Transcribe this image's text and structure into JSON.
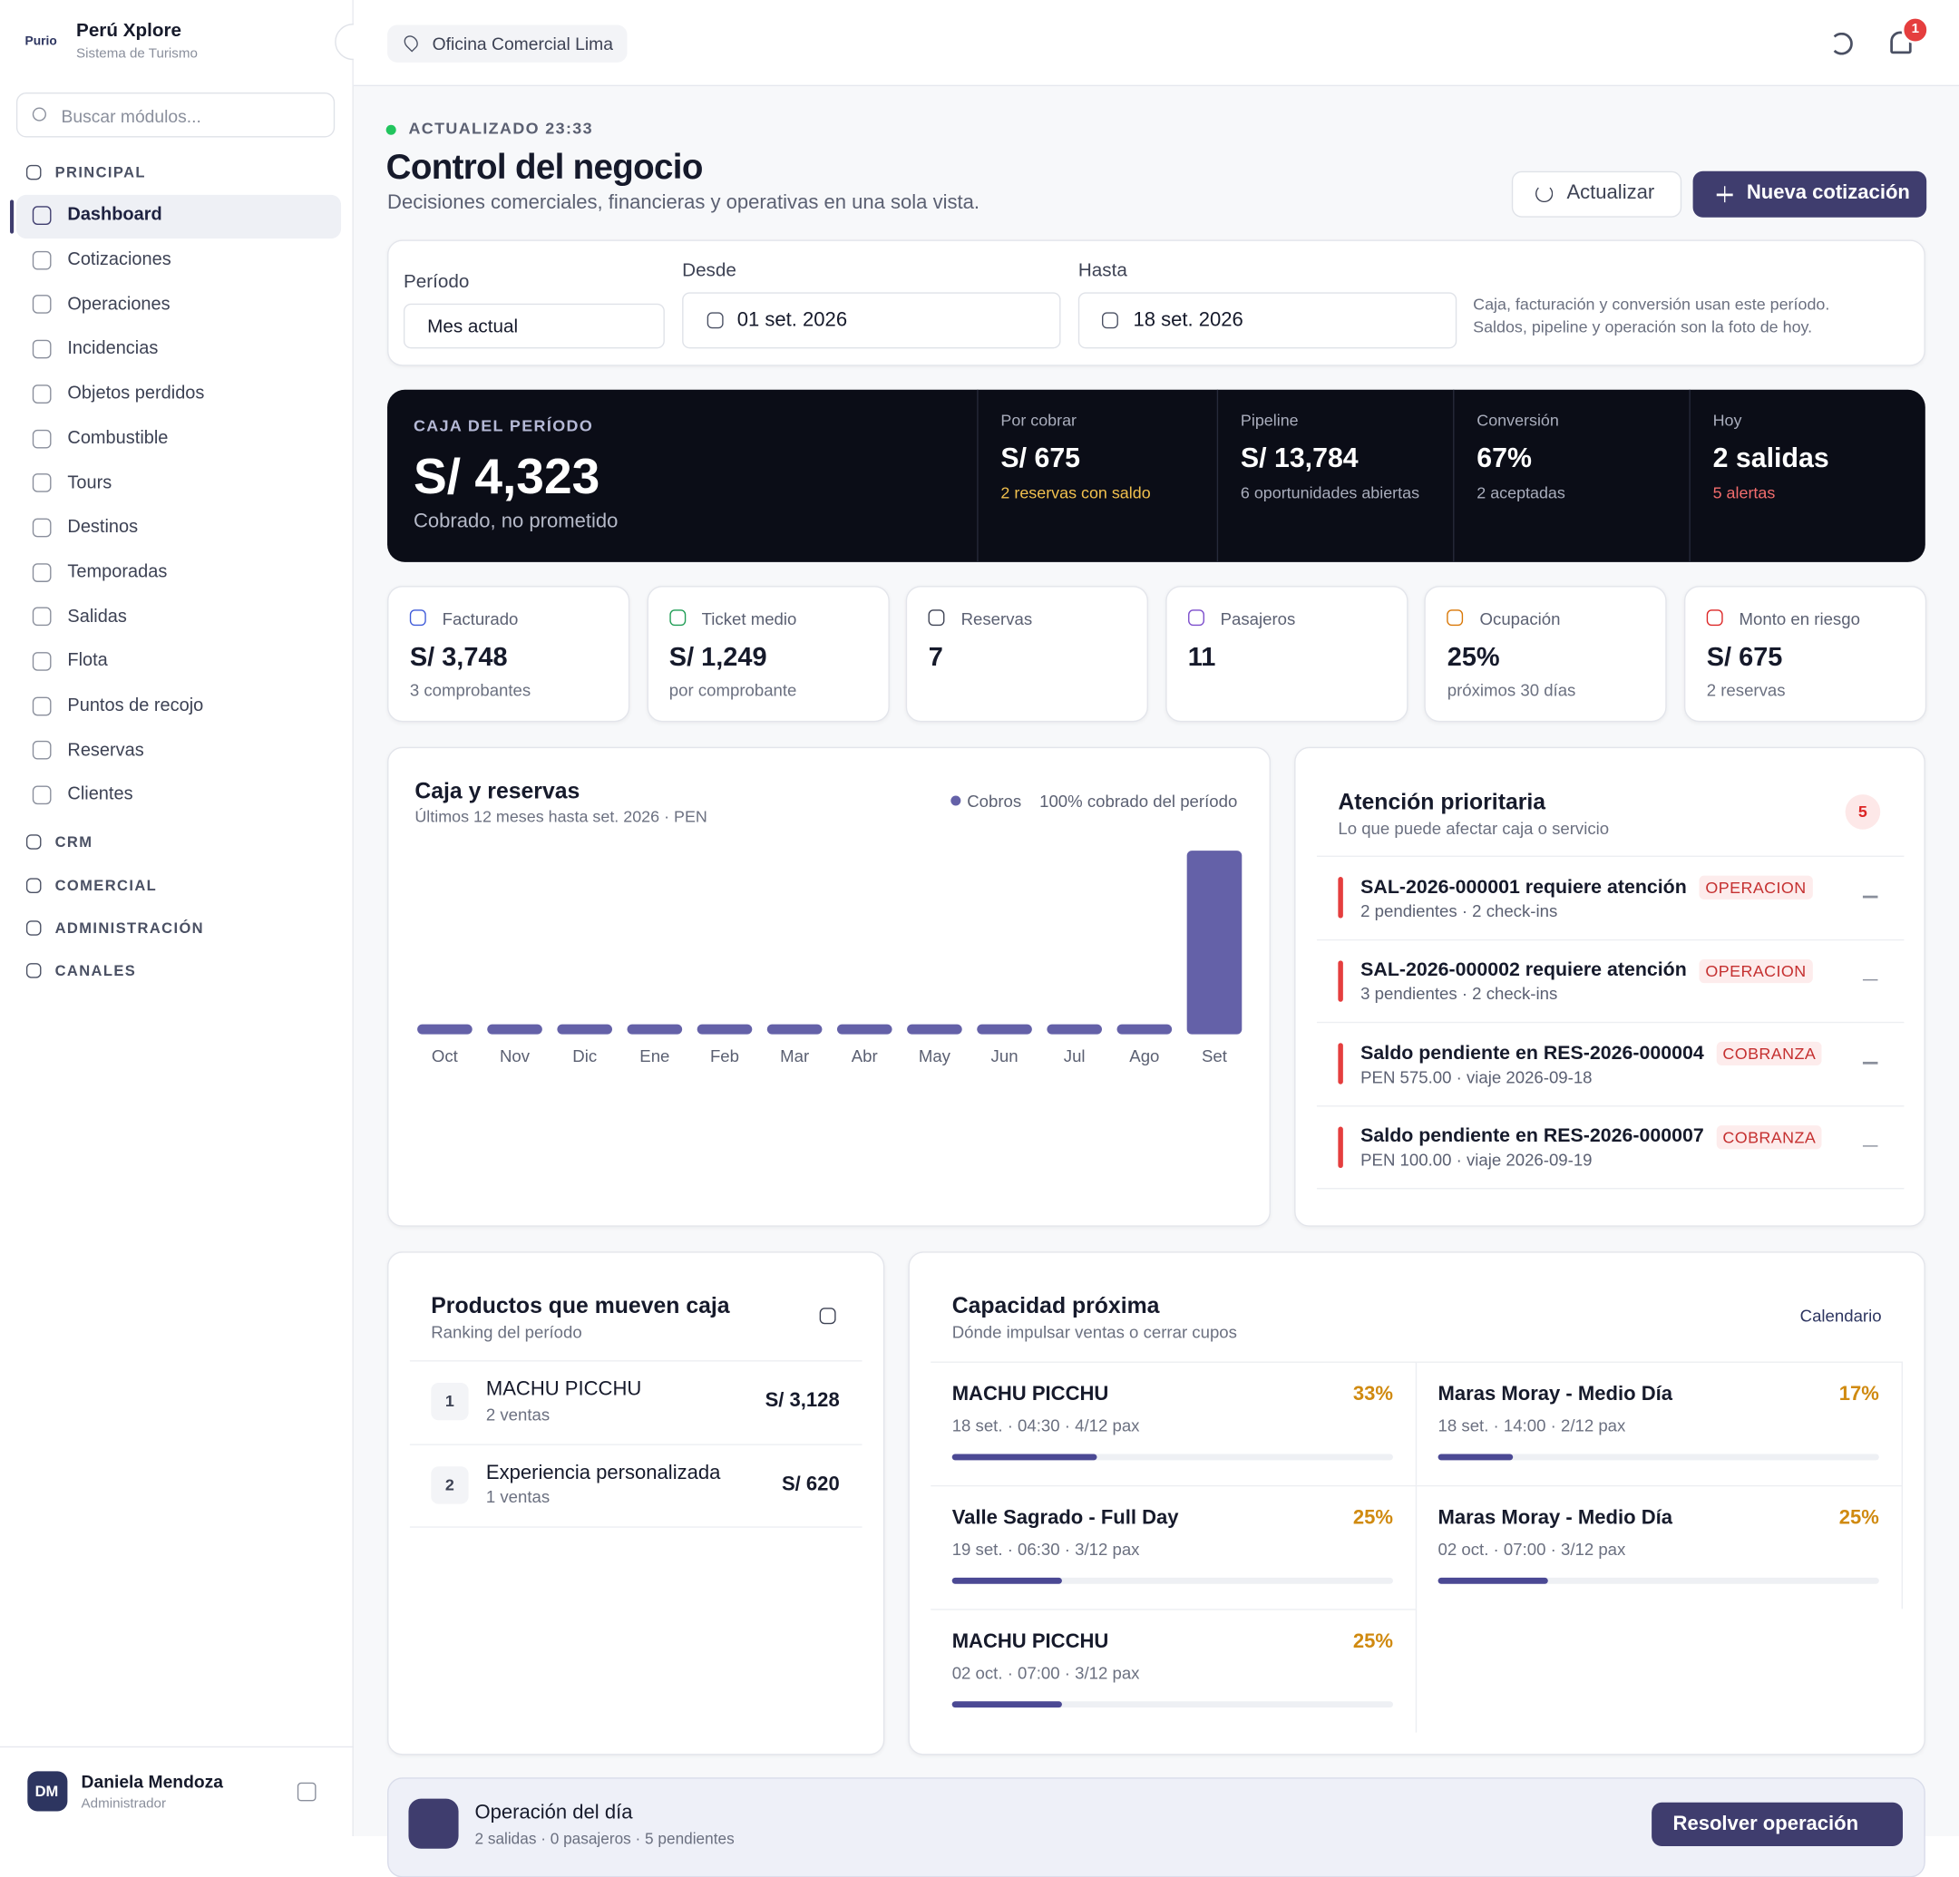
{
  "sidebar": {
    "logo": "Purio",
    "brand": "Perú Xplore",
    "subtitle": "Sistema de Turismo",
    "search_placeholder": "Buscar módulos...",
    "sections": [
      {
        "title": "PRINCIPAL",
        "items": [
          "Dashboard",
          "Cotizaciones",
          "Operaciones",
          "Incidencias",
          "Objetos perdidos",
          "Combustible",
          "Tours",
          "Destinos",
          "Temporadas",
          "Salidas",
          "Flota",
          "Puntos de recojo",
          "Reservas",
          "Clientes"
        ]
      },
      {
        "title": "CRM"
      },
      {
        "title": "COMERCIAL"
      },
      {
        "title": "ADMINISTRACIÓN"
      },
      {
        "title": "CANALES"
      }
    ],
    "user": {
      "initials": "DM",
      "name": "Daniela Mendoza",
      "role": "Administrador"
    }
  },
  "topbar": {
    "office": "Oficina Comercial Lima",
    "notifications": 1
  },
  "header": {
    "status": "ACTUALIZADO 23:33",
    "title": "Control del negocio",
    "subtitle": "Decisiones comerciales, financieras y operativas en una sola vista.",
    "refresh": "Actualizar",
    "new_quote": "Nueva cotización"
  },
  "filters": {
    "period_label": "Período",
    "period_value": "Mes actual",
    "from_label": "Desde",
    "from_value": "01 set. 2026",
    "to_label": "Hasta",
    "to_value": "18 set. 2026",
    "note": [
      "Caja, facturación y conversión usan este período.",
      "Saldos, pipeline y operación son la foto de hoy."
    ]
  },
  "hero": {
    "label": "CAJA DEL PERÍODO",
    "value": "S/ 4,323",
    "caption": "Cobrado, no prometido",
    "stats": [
      {
        "label": "Por cobrar",
        "value": "S/ 675",
        "detail": "2 reservas con saldo"
      },
      {
        "label": "Pipeline",
        "value": "S/ 13,784",
        "detail": "6 oportunidades abiertas"
      },
      {
        "label": "Conversión",
        "value": "67%",
        "detail": "2 aceptadas"
      },
      {
        "label": "Hoy",
        "value": "2 salidas",
        "detail": "5 alertas"
      }
    ]
  },
  "kpis": [
    {
      "label": "Facturado",
      "value": "S/ 3,748",
      "detail": "3 comprobantes"
    },
    {
      "label": "Ticket medio",
      "value": "S/ 1,249",
      "detail": "por comprobante"
    },
    {
      "label": "Reservas",
      "value": "7"
    },
    {
      "label": "Pasajeros",
      "value": "11"
    },
    {
      "label": "Ocupación",
      "value": "25%",
      "detail": "próximos 30 días"
    },
    {
      "label": "Monto en riesgo",
      "value": "S/ 675",
      "detail": "2 reservas"
    }
  ],
  "chart_data": {
    "type": "bar",
    "title": "Caja y reservas",
    "subtitle": "Últimos 12 meses hasta set. 2026 · PEN",
    "note": "100% cobrado del período",
    "categories": [
      "Oct",
      "Nov",
      "Dic",
      "Ene",
      "Feb",
      "Mar",
      "Abr",
      "May",
      "Jun",
      "Jul",
      "Ago",
      "Set"
    ],
    "series": [
      {
        "name": "Cobros",
        "color": "#6461a8",
        "values": [
          0,
          0,
          0,
          0,
          0,
          0,
          0,
          0,
          0,
          0,
          0,
          4323
        ]
      }
    ]
  },
  "alerts": {
    "title": "Atención prioritaria",
    "subtitle": "Lo que puede afectar caja o servicio",
    "count": 5,
    "items": [
      {
        "title": "SAL-2026-000001 requiere atención",
        "tag": "OPERACION",
        "detail": "2 pendientes · 2 check-ins"
      },
      {
        "title": "SAL-2026-000002 requiere atención",
        "tag": "OPERACION",
        "detail": "3 pendientes · 2 check-ins"
      },
      {
        "title": "Saldo pendiente en RES-2026-000004",
        "tag": "COBRANZA",
        "detail": "PEN 575.00 · viaje 2026-09-18"
      },
      {
        "title": "Saldo pendiente en RES-2026-000007",
        "tag": "COBRANZA",
        "detail": "PEN 100.00 · viaje 2026-09-19"
      }
    ]
  },
  "products": {
    "title": "Productos que mueven caja",
    "subtitle": "Ranking del período",
    "items": [
      {
        "rank": 1,
        "name": "MACHU PICCHU",
        "detail": "2 ventas",
        "amount": "S/ 3,128"
      },
      {
        "rank": 2,
        "name": "Experiencia personalizada",
        "detail": "1 ventas",
        "amount": "S/ 620"
      }
    ]
  },
  "capacity": {
    "title": "Capacidad próxima",
    "subtitle": "Dónde impulsar ventas o cerrar cupos",
    "link": "Calendario",
    "items": [
      {
        "name": "MACHU PICCHU",
        "detail": "18 set. · 04:30 · 4/12 pax",
        "percent": 33,
        "percent_label": "33%"
      },
      {
        "name": "Maras Moray - Medio Día",
        "detail": "18 set. · 14:00 · 2/12 pax",
        "percent": 17,
        "percent_label": "17%"
      },
      {
        "name": "Valle Sagrado - Full Day",
        "detail": "19 set. · 06:30 · 3/12 pax",
        "percent": 25,
        "percent_label": "25%"
      },
      {
        "name": "Maras Moray - Medio Día",
        "detail": "02 oct. · 07:00 · 3/12 pax",
        "percent": 25,
        "percent_label": "25%"
      },
      {
        "name": "MACHU PICCHU",
        "detail": "02 oct. · 07:00 · 3/12 pax",
        "percent": 25,
        "percent_label": "25%"
      }
    ]
  },
  "operation": {
    "title": "Operación del día",
    "detail": "2 salidas · 0 pasajeros · 5 pendientes",
    "action": "Resolver operación"
  }
}
